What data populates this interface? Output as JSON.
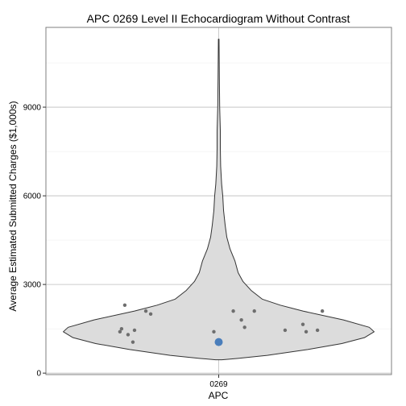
{
  "chart_data": {
    "type": "violin",
    "title": "APC 0269 Level II Echocardiogram Without Contrast",
    "xlabel": "APC",
    "ylabel": "Average Estimated Submitted Charges ($1,000s)",
    "categories": [
      "0269"
    ],
    "ylim": [
      -50,
      11700
    ],
    "yticks": [
      0,
      3000,
      6000,
      9000
    ],
    "ytick_labels": [
      "0",
      "3000",
      "6000",
      "9000"
    ],
    "grid": true,
    "violin_profile": [
      {
        "y": 450,
        "half_width": 0.02
      },
      {
        "y": 500,
        "half_width": 0.12
      },
      {
        "y": 600,
        "half_width": 0.3
      },
      {
        "y": 800,
        "half_width": 0.55
      },
      {
        "y": 1000,
        "half_width": 0.76
      },
      {
        "y": 1200,
        "half_width": 0.9
      },
      {
        "y": 1400,
        "half_width": 0.96
      },
      {
        "y": 1550,
        "half_width": 0.93
      },
      {
        "y": 1800,
        "half_width": 0.77
      },
      {
        "y": 2100,
        "half_width": 0.52
      },
      {
        "y": 2300,
        "half_width": 0.38
      },
      {
        "y": 2500,
        "half_width": 0.27
      },
      {
        "y": 2800,
        "half_width": 0.2
      },
      {
        "y": 3100,
        "half_width": 0.15
      },
      {
        "y": 3400,
        "half_width": 0.12
      },
      {
        "y": 3800,
        "half_width": 0.1
      },
      {
        "y": 4200,
        "half_width": 0.07
      },
      {
        "y": 4600,
        "half_width": 0.05
      },
      {
        "y": 5000,
        "half_width": 0.04
      },
      {
        "y": 5500,
        "half_width": 0.03
      },
      {
        "y": 6000,
        "half_width": 0.025
      },
      {
        "y": 6400,
        "half_width": 0.018
      },
      {
        "y": 7000,
        "half_width": 0.012
      },
      {
        "y": 7600,
        "half_width": 0.01
      },
      {
        "y": 8200,
        "half_width": 0.01
      },
      {
        "y": 9000,
        "half_width": 0.006
      },
      {
        "y": 10000,
        "half_width": 0.004
      },
      {
        "y": 11300,
        "half_width": 0.002
      }
    ],
    "points": [
      {
        "x": -0.58,
        "y": 2300
      },
      {
        "x": -0.6,
        "y": 1500
      },
      {
        "x": -0.61,
        "y": 1400
      },
      {
        "x": -0.56,
        "y": 1300
      },
      {
        "x": -0.53,
        "y": 1050
      },
      {
        "x": -0.52,
        "y": 1450
      },
      {
        "x": -0.45,
        "y": 2100
      },
      {
        "x": -0.42,
        "y": 2000
      },
      {
        "x": -0.03,
        "y": 1400
      },
      {
        "x": 0.09,
        "y": 2100
      },
      {
        "x": 0.14,
        "y": 1800
      },
      {
        "x": 0.16,
        "y": 1550
      },
      {
        "x": 0.22,
        "y": 2100
      },
      {
        "x": 0.41,
        "y": 1450
      },
      {
        "x": 0.52,
        "y": 1650
      },
      {
        "x": 0.54,
        "y": 1400
      },
      {
        "x": 0.61,
        "y": 1450
      },
      {
        "x": 0.64,
        "y": 2100
      }
    ],
    "highlight_point": {
      "x": 0.0,
      "y": 1050
    },
    "colors": {
      "violin_fill": "#dcdcdc",
      "violin_stroke": "#333333",
      "point": "#6e6e6e",
      "highlight": "#4a7ebb",
      "grid_major": "#bebebe",
      "grid_minor": "#efefef",
      "panel_border": "#7f7f7f"
    }
  }
}
